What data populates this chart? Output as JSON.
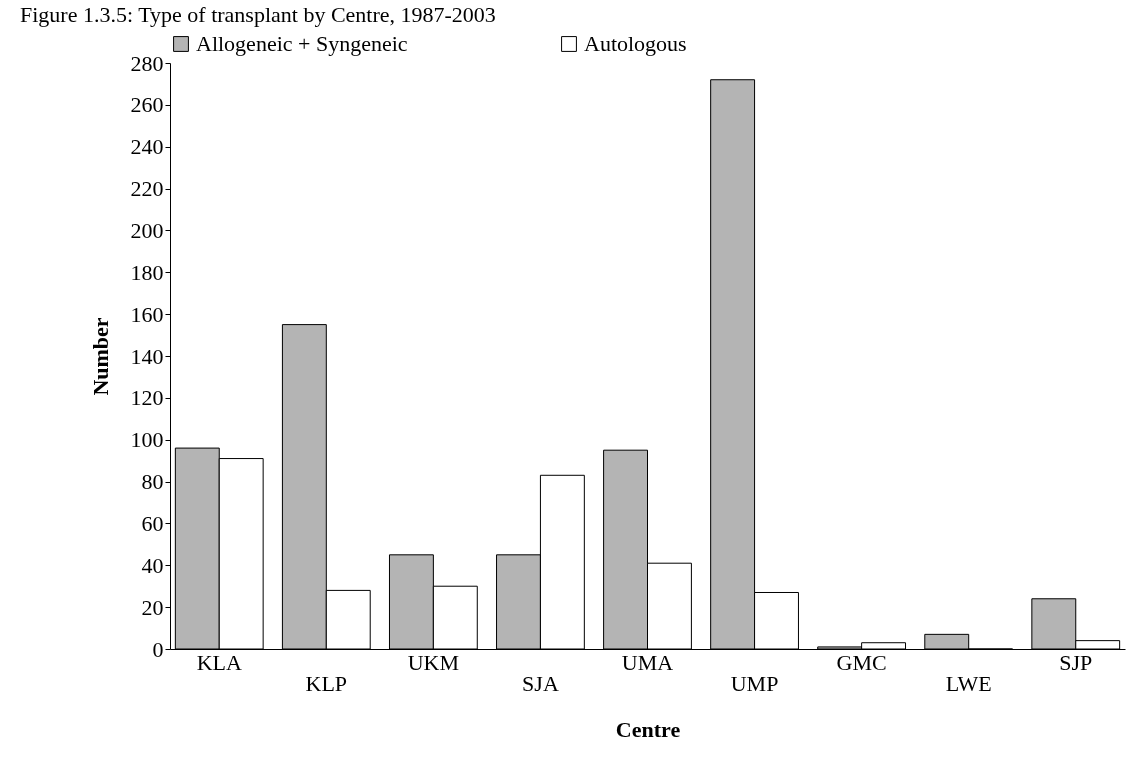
{
  "chart_data": {
    "type": "bar",
    "title": "Figure 1.3.5: Type of transplant by Centre, 1987-2003",
    "xlabel": "Centre",
    "ylabel": "Number",
    "categories": [
      "KLA",
      "KLP",
      "UKM",
      "SJA",
      "UMA",
      "UMP",
      "GMC",
      "LWE",
      "SJP"
    ],
    "series": [
      {
        "name": "Allogeneic + Syngeneic",
        "color": "#b4b4b4",
        "values": [
          96,
          155,
          45,
          45,
          95,
          272,
          1,
          7,
          24
        ]
      },
      {
        "name": "Autologous",
        "color": "#ffffff",
        "values": [
          91,
          28,
          30,
          83,
          41,
          27,
          3,
          0,
          4
        ]
      }
    ],
    "ylim": [
      0,
      280
    ],
    "yticks": [
      0,
      20,
      40,
      60,
      80,
      100,
      120,
      140,
      160,
      180,
      200,
      220,
      240,
      260,
      280
    ],
    "grid": false,
    "legend": "top"
  }
}
